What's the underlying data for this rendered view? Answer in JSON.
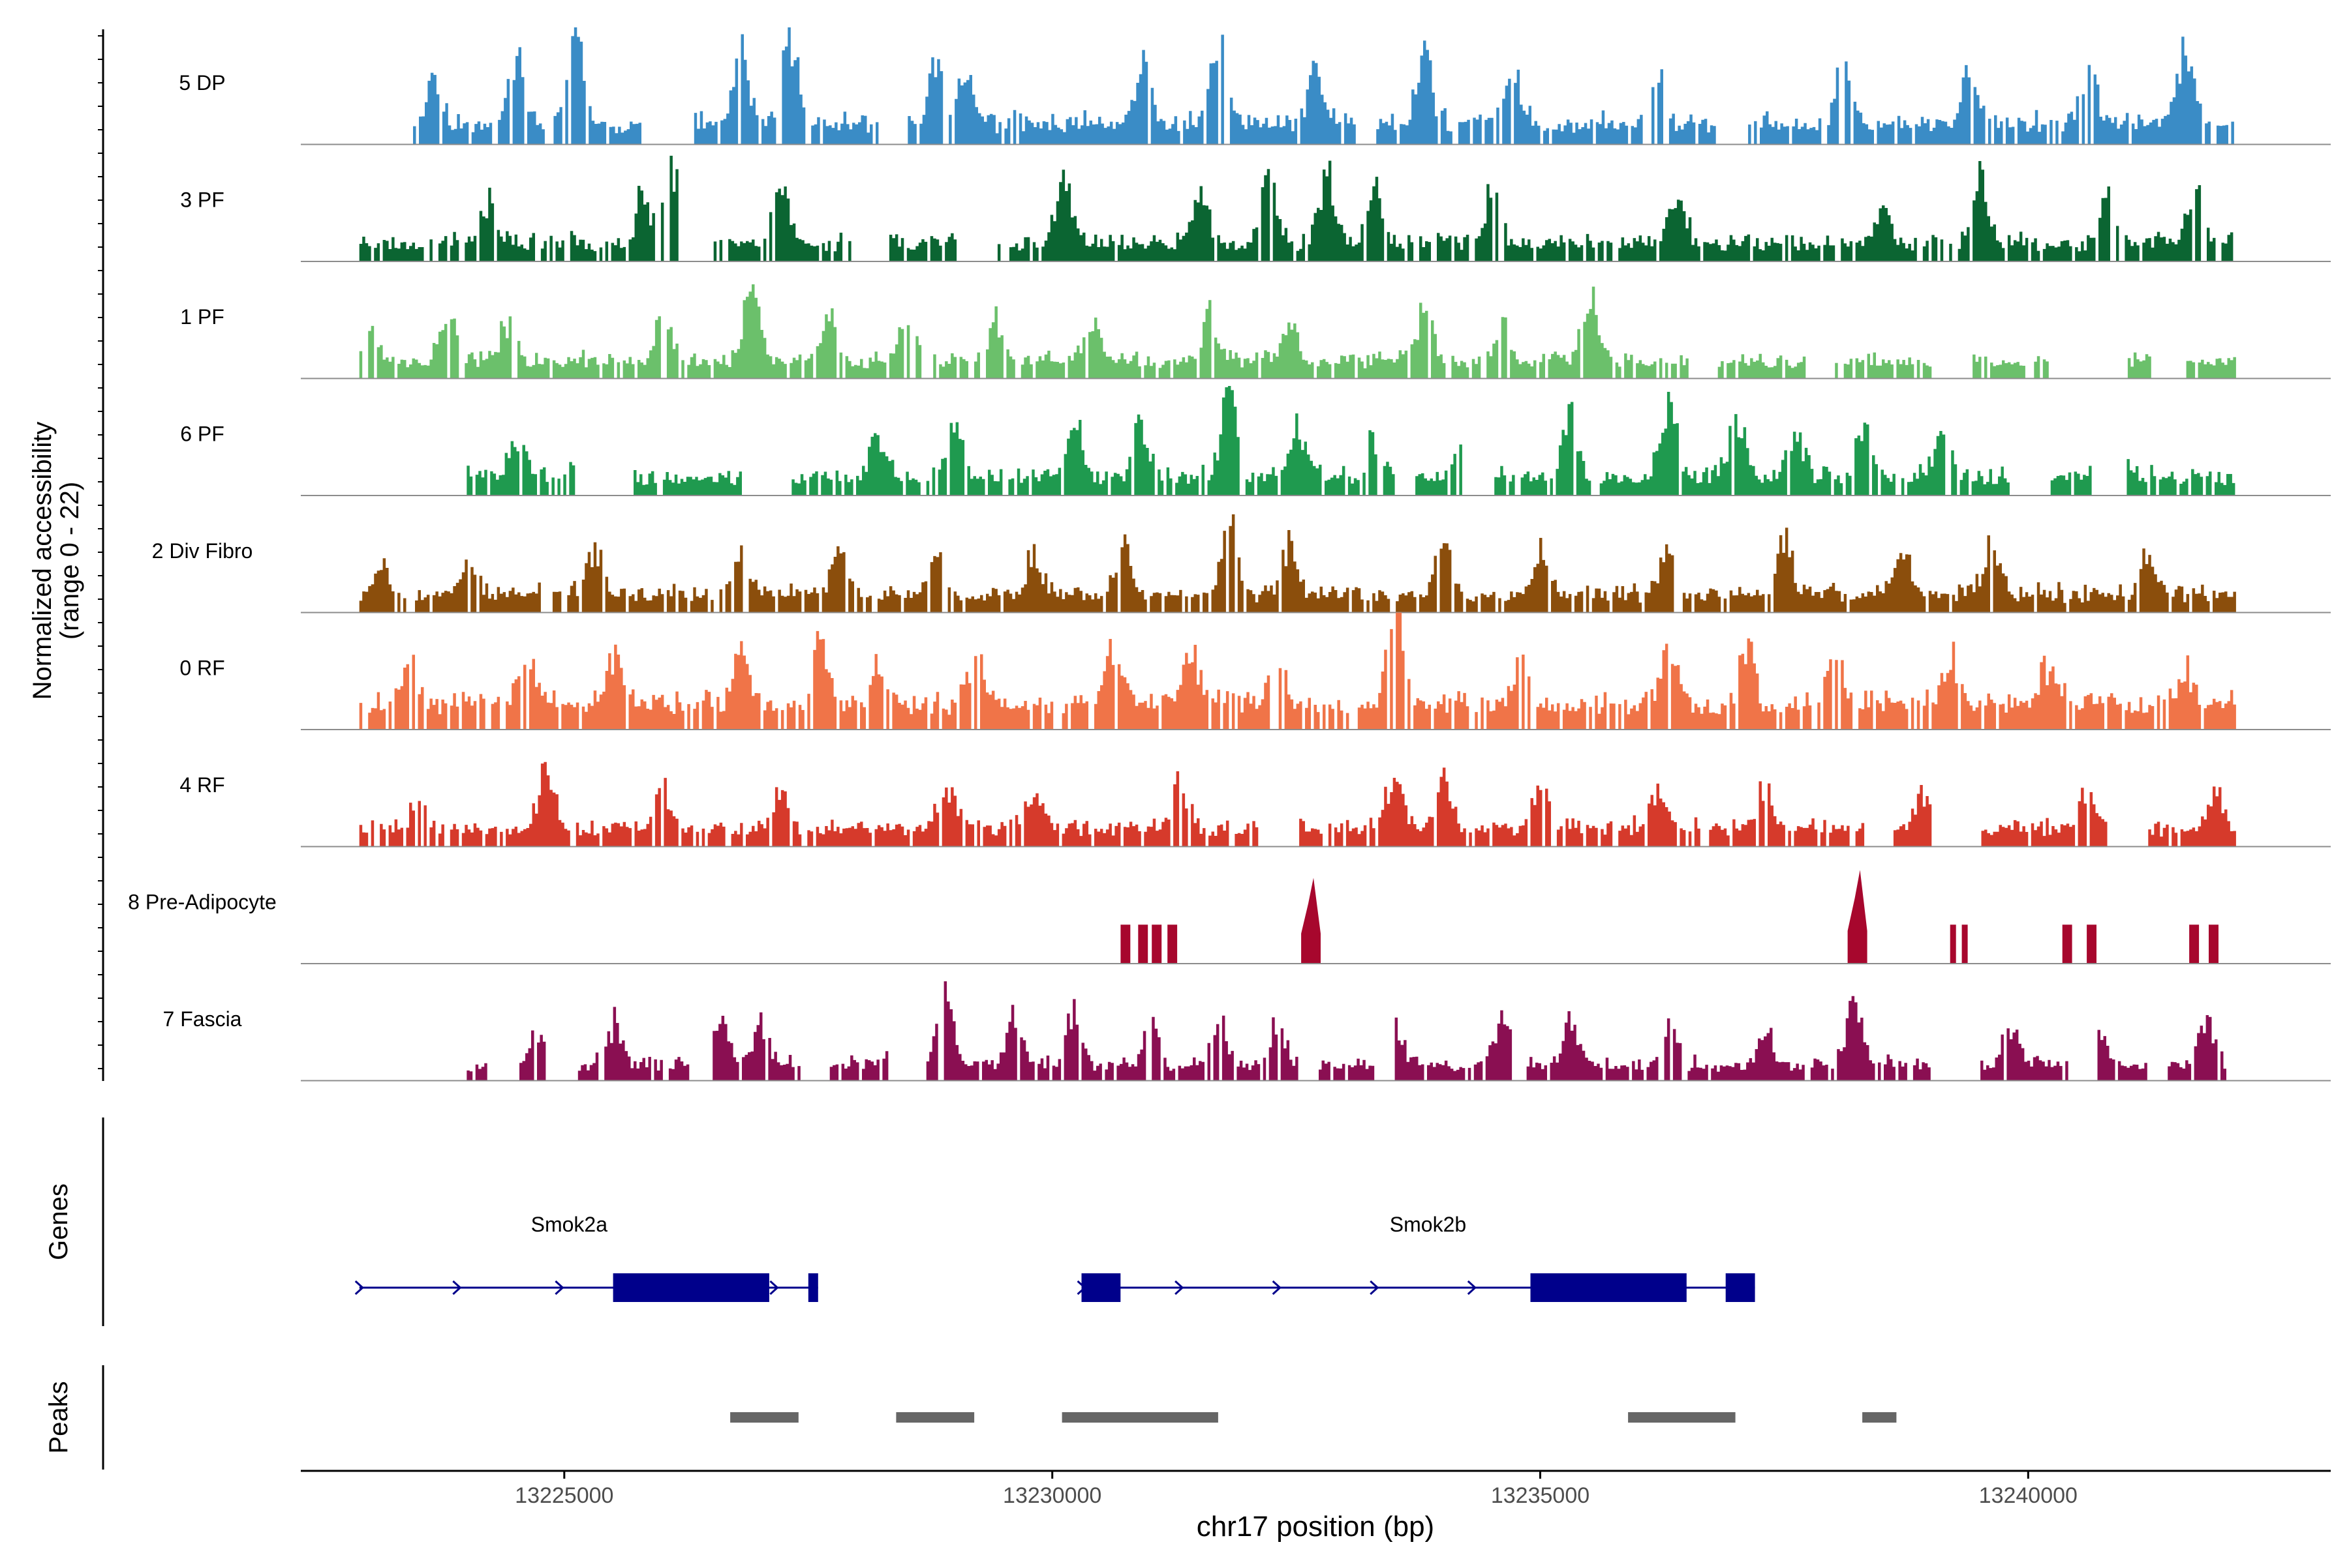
{
  "chart_data": {
    "type": "area",
    "xlabel": "chr17 position (bp)",
    "ylabel_line1": "Normalized accessibility",
    "ylabel_line2": "(range 0 - 22)",
    "y_range": [
      0,
      22
    ],
    "x_range": [
      13222300,
      13243100
    ],
    "x_ticks": [
      {
        "value": 13225000,
        "label": "13225000"
      },
      {
        "value": 13230000,
        "label": "13230000"
      },
      {
        "value": 13235000,
        "label": "13235000"
      },
      {
        "value": 13240000,
        "label": "13240000"
      }
    ],
    "colors": {
      "5 DP": "#3a8cc6",
      "3 PF": "#0b6532",
      "1 PF": "#6bc06b",
      "6 PF": "#1f9a4f",
      "2 Div Fibro": "#8b4e0c",
      "0 RF": "#f07448",
      "4 RF": "#d63a2b",
      "8 Pre-Adipocyte": "#a7072d",
      "7 Fascia": "#8a0f52",
      "gene": "#00008b",
      "peak": "#666666"
    },
    "series": [
      {
        "name": "5 DP",
        "start": 13223450,
        "end": 13242100,
        "gaps": [
          [
            13225800,
            13226300
          ],
          [
            13228200,
            13228500
          ],
          [
            13233100,
            13233300
          ],
          [
            13236800,
            13237100
          ]
        ],
        "peaks": [
          [
            13223650,
            6
          ],
          [
            13224500,
            8
          ],
          [
            13225100,
            12
          ],
          [
            13226800,
            8
          ],
          [
            13227300,
            11
          ],
          [
            13228800,
            9
          ],
          [
            13229100,
            6
          ],
          [
            13230900,
            8
          ],
          [
            13231700,
            12
          ],
          [
            13232700,
            8
          ],
          [
            13233800,
            9
          ],
          [
            13234700,
            7
          ],
          [
            13236200,
            6
          ],
          [
            13238100,
            8
          ],
          [
            13239400,
            7
          ],
          [
            13240600,
            7
          ],
          [
            13241600,
            10
          ]
        ],
        "base": 1.8,
        "noise": 1.8,
        "seed": 11
      },
      {
        "name": "3 PF",
        "start": 13222900,
        "end": 13242100,
        "gaps": [
          [
            13226200,
            13226500
          ],
          [
            13228000,
            13228300
          ],
          [
            13229000,
            13229400
          ]
        ],
        "peaks": [
          [
            13224200,
            5
          ],
          [
            13225800,
            6
          ],
          [
            13226100,
            9
          ],
          [
            13227200,
            8
          ],
          [
            13228200,
            5
          ],
          [
            13230100,
            8
          ],
          [
            13231500,
            7
          ],
          [
            13232200,
            9
          ],
          [
            13232800,
            9
          ],
          [
            13233300,
            6
          ],
          [
            13234500,
            7
          ],
          [
            13236400,
            6
          ],
          [
            13238500,
            5
          ],
          [
            13239500,
            8
          ],
          [
            13240800,
            6
          ],
          [
            13241700,
            7
          ]
        ],
        "base": 1.6,
        "noise": 1.6,
        "seed": 23
      },
      {
        "name": "1 PF",
        "start": 13222900,
        "end": 13242100,
        "gaps": [
          [
            13236500,
            13236800
          ],
          [
            13237700,
            13238000
          ],
          [
            13239000,
            13239400
          ],
          [
            13240200,
            13241000
          ],
          [
            13241300,
            13241600
          ]
        ],
        "peaks": [
          [
            13223000,
            4
          ],
          [
            13223800,
            6
          ],
          [
            13224400,
            5
          ],
          [
            13226000,
            5
          ],
          [
            13226900,
            9
          ],
          [
            13227700,
            5
          ],
          [
            13228500,
            6
          ],
          [
            13229400,
            5
          ],
          [
            13230400,
            5
          ],
          [
            13231600,
            6
          ],
          [
            13232400,
            5
          ],
          [
            13233800,
            7
          ],
          [
            13234600,
            5
          ],
          [
            13235500,
            8
          ]
        ],
        "base": 1.6,
        "noise": 1.4,
        "seed": 37
      },
      {
        "name": "6 PF",
        "start": 13224000,
        "end": 13242100,
        "gaps": [
          [
            13225100,
            13225700
          ],
          [
            13226800,
            13227300
          ],
          [
            13233500,
            13233700
          ],
          [
            13234200,
            13234500
          ],
          [
            13239800,
            13240200
          ],
          [
            13240700,
            13241000
          ]
        ],
        "peaks": [
          [
            13224500,
            5
          ],
          [
            13225200,
            6
          ],
          [
            13227000,
            5
          ],
          [
            13228200,
            5
          ],
          [
            13229000,
            6
          ],
          [
            13230200,
            7
          ],
          [
            13230900,
            7
          ],
          [
            13231800,
            10
          ],
          [
            13232500,
            6
          ],
          [
            13233300,
            5
          ],
          [
            13234200,
            6
          ],
          [
            13235300,
            8
          ],
          [
            13236300,
            9
          ],
          [
            13237000,
            8
          ],
          [
            13237600,
            6
          ],
          [
            13238300,
            7
          ],
          [
            13239100,
            5
          ],
          [
            13240900,
            5
          ]
        ],
        "base": 1.6,
        "noise": 1.6,
        "seed": 41
      },
      {
        "name": "2 Div Fibro",
        "start": 13222900,
        "end": 13242100,
        "gaps": [],
        "peaks": [
          [
            13223100,
            4
          ],
          [
            13224000,
            5
          ],
          [
            13225300,
            5
          ],
          [
            13226800,
            5
          ],
          [
            13227800,
            5
          ],
          [
            13228800,
            6
          ],
          [
            13229800,
            5
          ],
          [
            13230700,
            6
          ],
          [
            13231800,
            9
          ],
          [
            13232400,
            6
          ],
          [
            13234000,
            7
          ],
          [
            13235000,
            6
          ],
          [
            13236300,
            6
          ],
          [
            13237500,
            7
          ],
          [
            13238700,
            6
          ],
          [
            13239600,
            7
          ],
          [
            13241200,
            5
          ]
        ],
        "base": 1.6,
        "noise": 1.6,
        "seed": 53
      },
      {
        "name": "0 RF",
        "start": 13222900,
        "end": 13242100,
        "gaps": [],
        "peaks": [
          [
            13223400,
            7
          ],
          [
            13224600,
            7
          ],
          [
            13225500,
            6
          ],
          [
            13226800,
            8
          ],
          [
            13227600,
            7
          ],
          [
            13228200,
            6
          ],
          [
            13229200,
            6
          ],
          [
            13230600,
            7
          ],
          [
            13231400,
            6
          ],
          [
            13232300,
            6
          ],
          [
            13233500,
            15
          ],
          [
            13234800,
            6
          ],
          [
            13236300,
            8
          ],
          [
            13237100,
            7
          ],
          [
            13238000,
            6
          ],
          [
            13239200,
            5
          ],
          [
            13240200,
            5
          ],
          [
            13241600,
            4
          ]
        ],
        "base": 2.4,
        "noise": 2.0,
        "seed": 67
      },
      {
        "name": "4 RF",
        "start": 13222900,
        "end": 13242100,
        "gaps": [
          [
            13232100,
            13232500
          ],
          [
            13238300,
            13238600
          ],
          [
            13239000,
            13239500
          ],
          [
            13240800,
            13241200
          ]
        ],
        "peaks": [
          [
            13223500,
            4
          ],
          [
            13224800,
            7
          ],
          [
            13226000,
            5
          ],
          [
            13227200,
            5
          ],
          [
            13228900,
            6
          ],
          [
            13229800,
            5
          ],
          [
            13231300,
            5
          ],
          [
            13233500,
            7
          ],
          [
            13234000,
            6
          ],
          [
            13235000,
            5
          ],
          [
            13236200,
            5
          ],
          [
            13237300,
            5
          ],
          [
            13238900,
            4
          ],
          [
            13240600,
            5
          ],
          [
            13241900,
            4
          ]
        ],
        "base": 1.6,
        "noise": 1.6,
        "seed": 79
      },
      {
        "name": "8 Pre-Adipocyte",
        "spikes": [
          [
            13230700,
            13230800,
            5
          ],
          [
            13230880,
            13230980,
            5
          ],
          [
            13231020,
            13231120,
            5
          ],
          [
            13231180,
            13231280,
            5
          ],
          [
            13232550,
            13232750,
            11
          ],
          [
            13238150,
            13238350,
            12
          ],
          [
            13239200,
            13239260,
            5
          ],
          [
            13239320,
            13239380,
            5
          ],
          [
            13240350,
            13240450,
            5
          ],
          [
            13240600,
            13240700,
            5
          ],
          [
            13241650,
            13241750,
            5
          ],
          [
            13241850,
            13241950,
            5
          ]
        ]
      },
      {
        "name": "7 Fascia",
        "start": 13224000,
        "end": 13242000,
        "gaps": [
          [
            13224200,
            13224500
          ],
          [
            13224800,
            13225100
          ],
          [
            13226300,
            13226500
          ],
          [
            13227400,
            13227700
          ],
          [
            13228300,
            13228700
          ],
          [
            13232500,
            13232700
          ],
          [
            13233300,
            13233500
          ],
          [
            13234700,
            13234800
          ],
          [
            13239000,
            13239500
          ],
          [
            13240400,
            13240700
          ],
          [
            13241200,
            13241400
          ]
        ],
        "peaks": [
          [
            13224700,
            4
          ],
          [
            13225500,
            5
          ],
          [
            13226600,
            6
          ],
          [
            13227000,
            5
          ],
          [
            13228400,
            6
          ],
          [
            13228900,
            8
          ],
          [
            13229600,
            6
          ],
          [
            13230200,
            7
          ],
          [
            13231000,
            5
          ],
          [
            13231700,
            6
          ],
          [
            13232300,
            5
          ],
          [
            13233500,
            5
          ],
          [
            13234600,
            6
          ],
          [
            13235300,
            5
          ],
          [
            13236300,
            4
          ],
          [
            13237300,
            4
          ],
          [
            13238200,
            8
          ],
          [
            13239800,
            5
          ],
          [
            13240700,
            5
          ],
          [
            13241800,
            6
          ]
        ],
        "base": 1.4,
        "noise": 1.3,
        "seed": 97
      }
    ],
    "genes_label": "Genes",
    "genes": [
      {
        "name": "Smok2a",
        "start": 13222900,
        "end": 13227600,
        "strand": "+",
        "exons": [
          [
            13225500,
            13227100
          ],
          [
            13227500,
            13227600
          ]
        ],
        "arrows": [
          13222900,
          13223900,
          13224950,
          13227150
        ]
      },
      {
        "name": "Smok2b",
        "start": 13230300,
        "end": 13237200,
        "strand": "+",
        "exons": [
          [
            13230300,
            13230700
          ],
          [
            13234900,
            13236500
          ],
          [
            13236900,
            13237200
          ]
        ],
        "arrows": [
          13230300,
          13231300,
          13232300,
          13233300,
          13234300
        ]
      }
    ],
    "peaks_label": "Peaks",
    "peak_regions": [
      [
        13226700,
        13227400
      ],
      [
        13228400,
        13229200
      ],
      [
        13230100,
        13231700
      ],
      [
        13235900,
        13237000
      ],
      [
        13238300,
        13238650
      ]
    ]
  }
}
